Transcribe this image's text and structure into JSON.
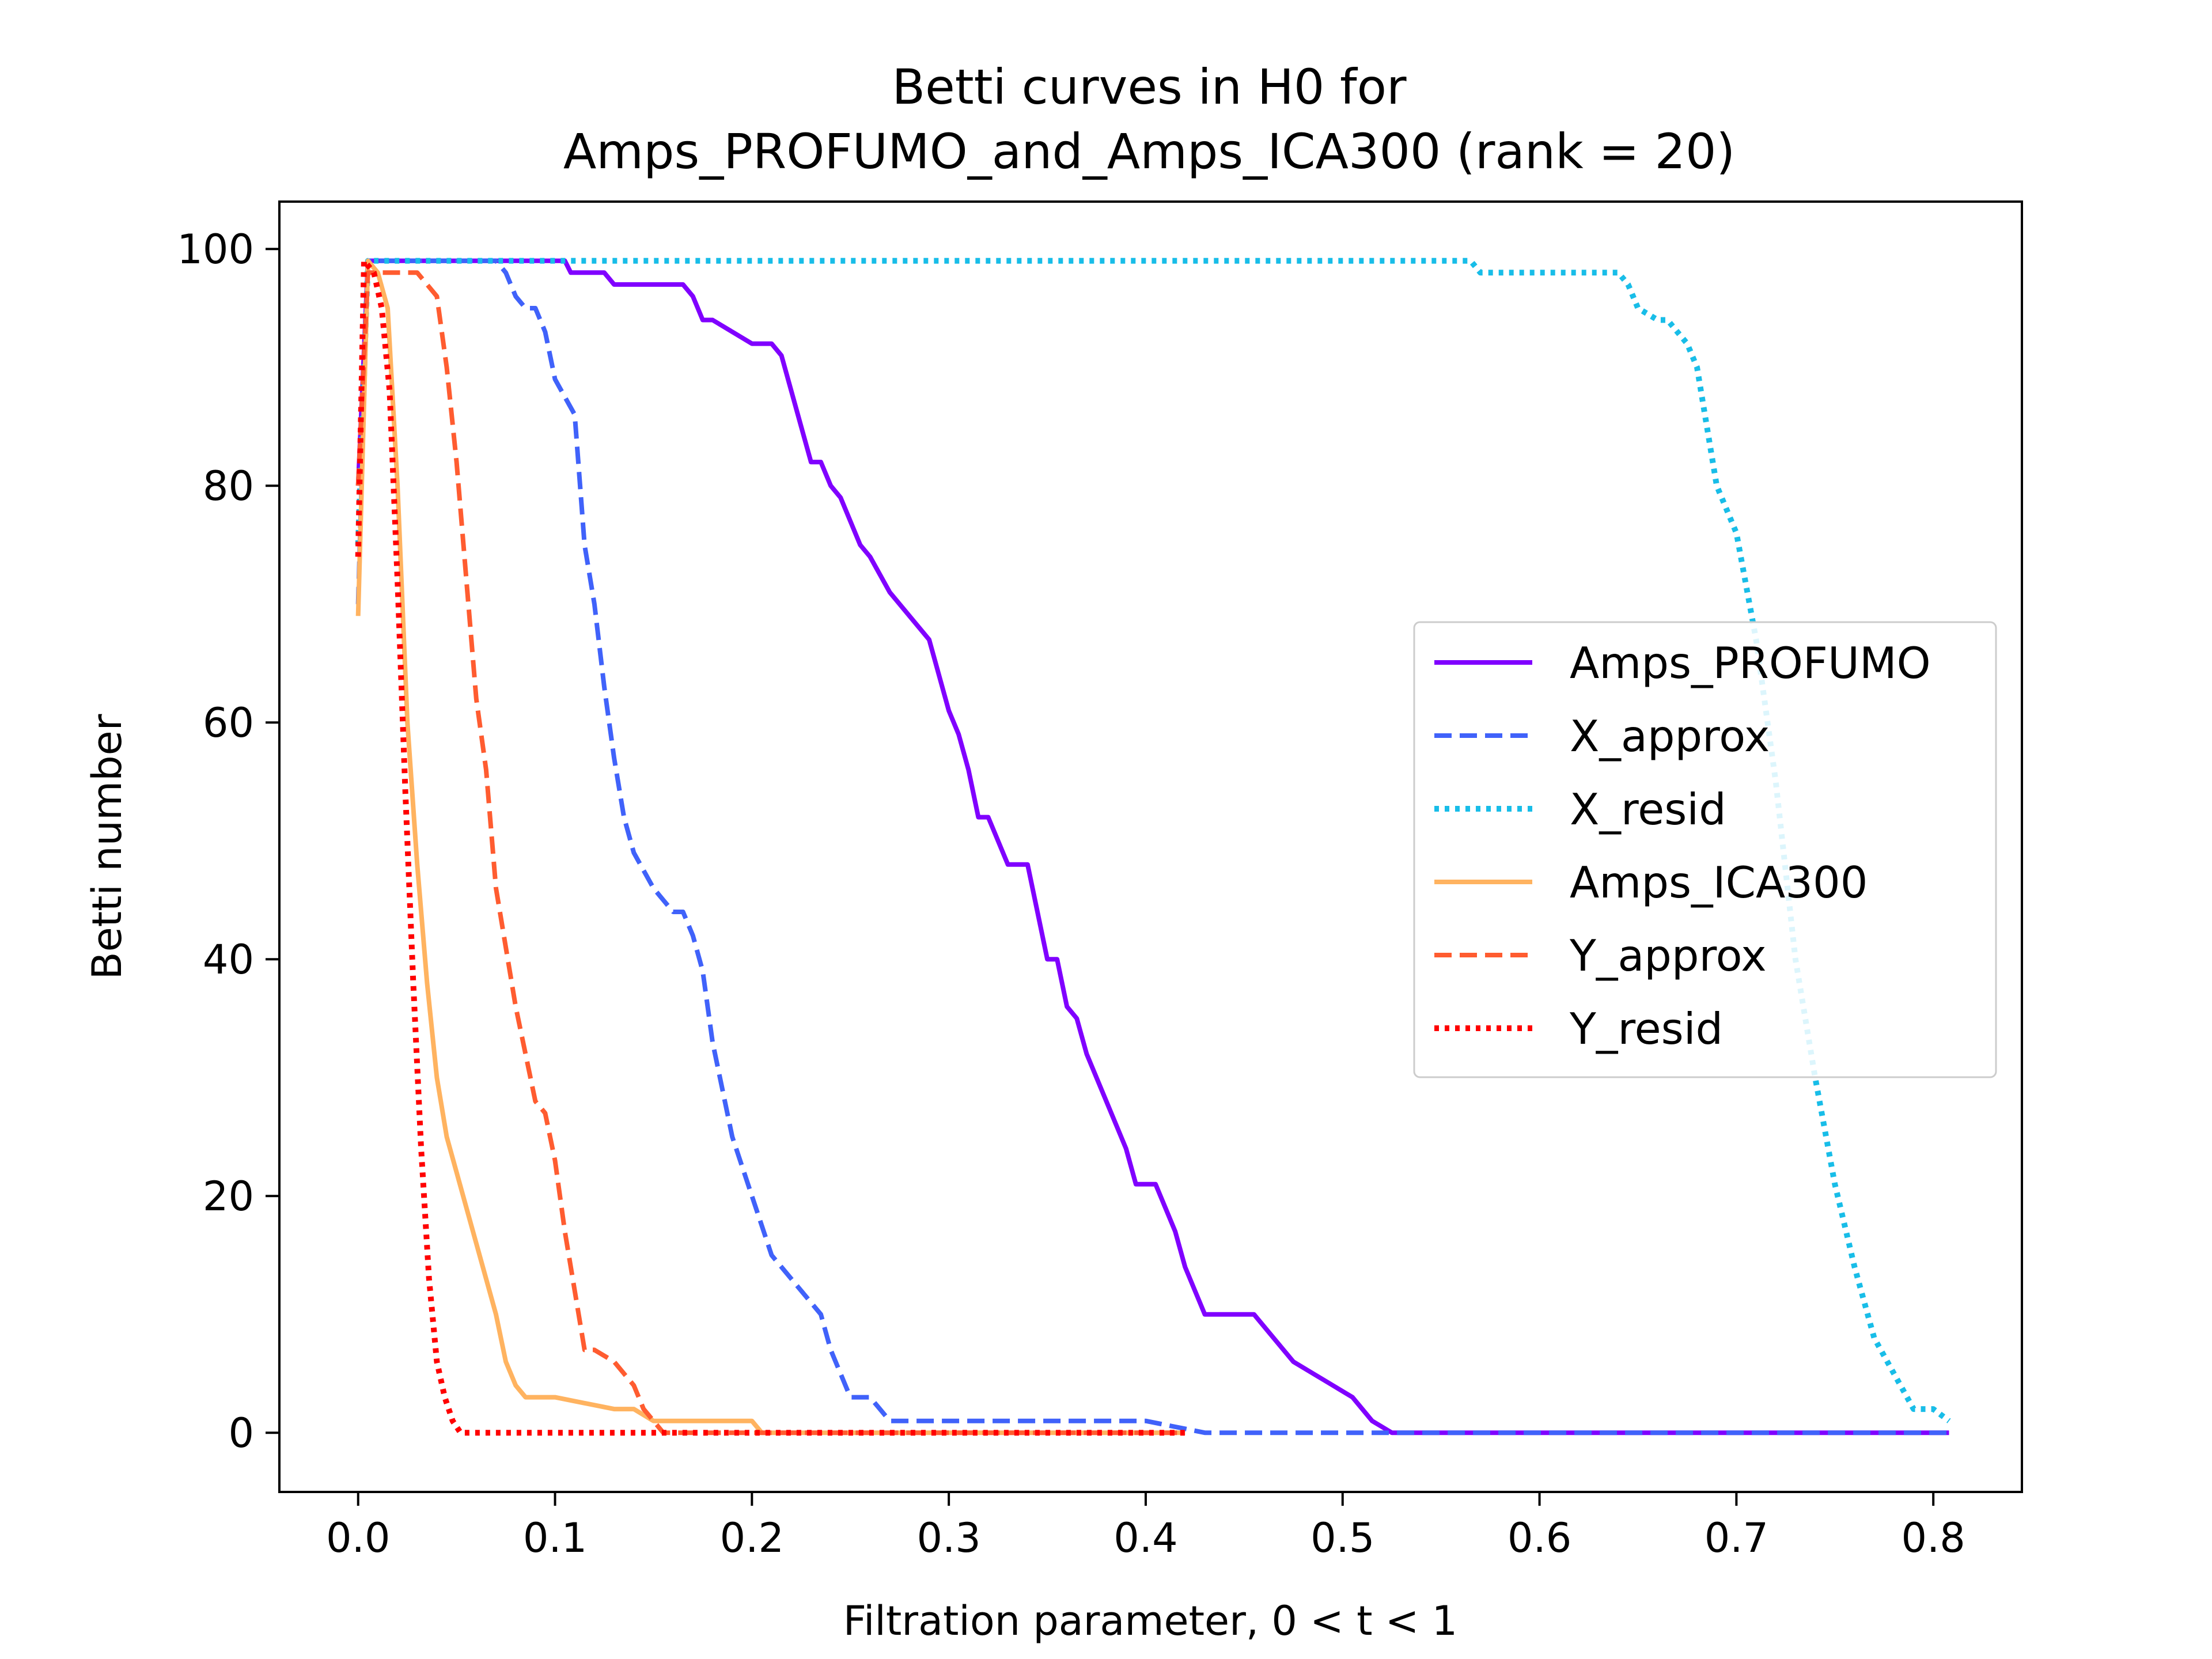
{
  "chart_data": {
    "type": "line",
    "title_line1": "Betti curves in H0 for",
    "title_line2": "Amps_PROFUMO_and_Amps_ICA300 (rank = 20)",
    "xlabel": "Filtration parameter, 0 < t < 1",
    "ylabel": "Betti number",
    "xlim": [
      -0.04,
      0.845
    ],
    "ylim": [
      -5,
      104
    ],
    "xticks": [
      0.0,
      0.1,
      0.2,
      0.3,
      0.4,
      0.5,
      0.6,
      0.7,
      0.8
    ],
    "xtick_labels": [
      "0.0",
      "0.1",
      "0.2",
      "0.3",
      "0.4",
      "0.5",
      "0.6",
      "0.7",
      "0.8"
    ],
    "yticks": [
      0,
      20,
      40,
      60,
      80,
      100
    ],
    "ytick_labels": [
      "0",
      "20",
      "40",
      "60",
      "80",
      "100"
    ],
    "grid": false,
    "legend_position": "center-right",
    "series": [
      {
        "name": "Amps_PROFUMO",
        "color": "#8000ff",
        "style": "solid",
        "x": [
          0.0,
          0.005,
          0.01,
          0.105,
          0.108,
          0.125,
          0.13,
          0.165,
          0.17,
          0.175,
          0.18,
          0.19,
          0.2,
          0.21,
          0.215,
          0.22,
          0.225,
          0.23,
          0.235,
          0.24,
          0.245,
          0.255,
          0.26,
          0.27,
          0.29,
          0.3,
          0.305,
          0.31,
          0.315,
          0.32,
          0.33,
          0.34,
          0.345,
          0.35,
          0.355,
          0.36,
          0.365,
          0.37,
          0.38,
          0.39,
          0.395,
          0.405,
          0.41,
          0.415,
          0.42,
          0.425,
          0.43,
          0.44,
          0.455,
          0.46,
          0.47,
          0.475,
          0.485,
          0.495,
          0.505,
          0.515,
          0.525,
          0.53,
          0.6,
          0.7,
          0.808
        ],
        "y": [
          80,
          99,
          99,
          99,
          98,
          98,
          97,
          97,
          96,
          94,
          94,
          93,
          92,
          92,
          91,
          88,
          85,
          82,
          82,
          80,
          79,
          75,
          74,
          71,
          67,
          61,
          59,
          56,
          52,
          52,
          48,
          48,
          44,
          40,
          40,
          36,
          35,
          32,
          28,
          24,
          21,
          21,
          19,
          17,
          14,
          12,
          10,
          10,
          10,
          9,
          7,
          6,
          5,
          4,
          3,
          1,
          0,
          0,
          0,
          0,
          0
        ]
      },
      {
        "name": "X_approx",
        "color": "#4062fa",
        "style": "dashed",
        "x": [
          0.0,
          0.005,
          0.01,
          0.07,
          0.075,
          0.08,
          0.085,
          0.09,
          0.095,
          0.1,
          0.11,
          0.115,
          0.12,
          0.125,
          0.13,
          0.135,
          0.14,
          0.15,
          0.155,
          0.16,
          0.165,
          0.17,
          0.175,
          0.18,
          0.19,
          0.2,
          0.21,
          0.22,
          0.23,
          0.235,
          0.24,
          0.25,
          0.26,
          0.265,
          0.27,
          0.28,
          0.3,
          0.35,
          0.4,
          0.43,
          0.5,
          0.6,
          0.7,
          0.808
        ],
        "y": [
          70,
          99,
          99,
          99,
          98,
          96,
          95,
          95,
          93,
          89,
          86,
          75,
          70,
          63,
          57,
          52,
          49,
          46,
          45,
          44,
          44,
          42,
          39,
          33,
          25,
          20,
          15,
          13,
          11,
          10,
          7,
          3,
          3,
          2,
          1,
          1,
          1,
          1,
          1,
          0,
          0,
          0,
          0,
          0
        ]
      },
      {
        "name": "X_resid",
        "color": "#18bde8",
        "style": "dotted",
        "x": [
          0.0,
          0.005,
          0.01,
          0.3,
          0.565,
          0.57,
          0.64,
          0.645,
          0.65,
          0.66,
          0.665,
          0.675,
          0.68,
          0.69,
          0.7,
          0.71,
          0.72,
          0.73,
          0.74,
          0.75,
          0.76,
          0.77,
          0.78,
          0.79,
          0.8,
          0.808
        ],
        "y": [
          75,
          99,
          99,
          99,
          99,
          98,
          98,
          97,
          95,
          94,
          94,
          92,
          90,
          80,
          76,
          67,
          55,
          40,
          30,
          21,
          14,
          8,
          5,
          2,
          2,
          1
        ]
      },
      {
        "name": "Amps_ICA300",
        "color": "#ffb360",
        "style": "solid",
        "x": [
          0.0,
          0.005,
          0.01,
          0.015,
          0.02,
          0.025,
          0.03,
          0.035,
          0.04,
          0.045,
          0.05,
          0.055,
          0.06,
          0.065,
          0.07,
          0.075,
          0.08,
          0.085,
          0.1,
          0.13,
          0.14,
          0.15,
          0.2,
          0.205,
          0.3,
          0.42
        ],
        "y": [
          69,
          99,
          98,
          95,
          80,
          60,
          48,
          38,
          30,
          25,
          22,
          19,
          16,
          13,
          10,
          6,
          4,
          3,
          3,
          2,
          2,
          1,
          1,
          0,
          0,
          0
        ]
      },
      {
        "name": "Y_approx",
        "color": "#ff5c30",
        "style": "dashed",
        "x": [
          0.0,
          0.005,
          0.03,
          0.04,
          0.045,
          0.05,
          0.055,
          0.06,
          0.065,
          0.07,
          0.075,
          0.08,
          0.085,
          0.09,
          0.095,
          0.1,
          0.105,
          0.11,
          0.115,
          0.12,
          0.13,
          0.135,
          0.14,
          0.145,
          0.15,
          0.155,
          0.16,
          0.2,
          0.3,
          0.42
        ],
        "y": [
          80,
          98,
          98,
          96,
          90,
          82,
          72,
          62,
          56,
          46,
          41,
          36,
          32,
          28,
          27,
          23,
          17,
          12,
          7,
          7,
          6,
          5,
          4,
          2,
          1,
          0,
          0,
          0,
          0,
          0
        ]
      },
      {
        "name": "Y_resid",
        "color": "#ff0000",
        "style": "dotted",
        "x": [
          0.0,
          0.003,
          0.008,
          0.012,
          0.016,
          0.02,
          0.024,
          0.028,
          0.032,
          0.036,
          0.04,
          0.044,
          0.048,
          0.052,
          0.055,
          0.1,
          0.2,
          0.3,
          0.42
        ],
        "y": [
          74,
          99,
          98,
          95,
          88,
          72,
          54,
          38,
          24,
          13,
          6,
          3,
          1,
          0,
          0,
          0,
          0,
          0,
          0
        ]
      }
    ]
  }
}
